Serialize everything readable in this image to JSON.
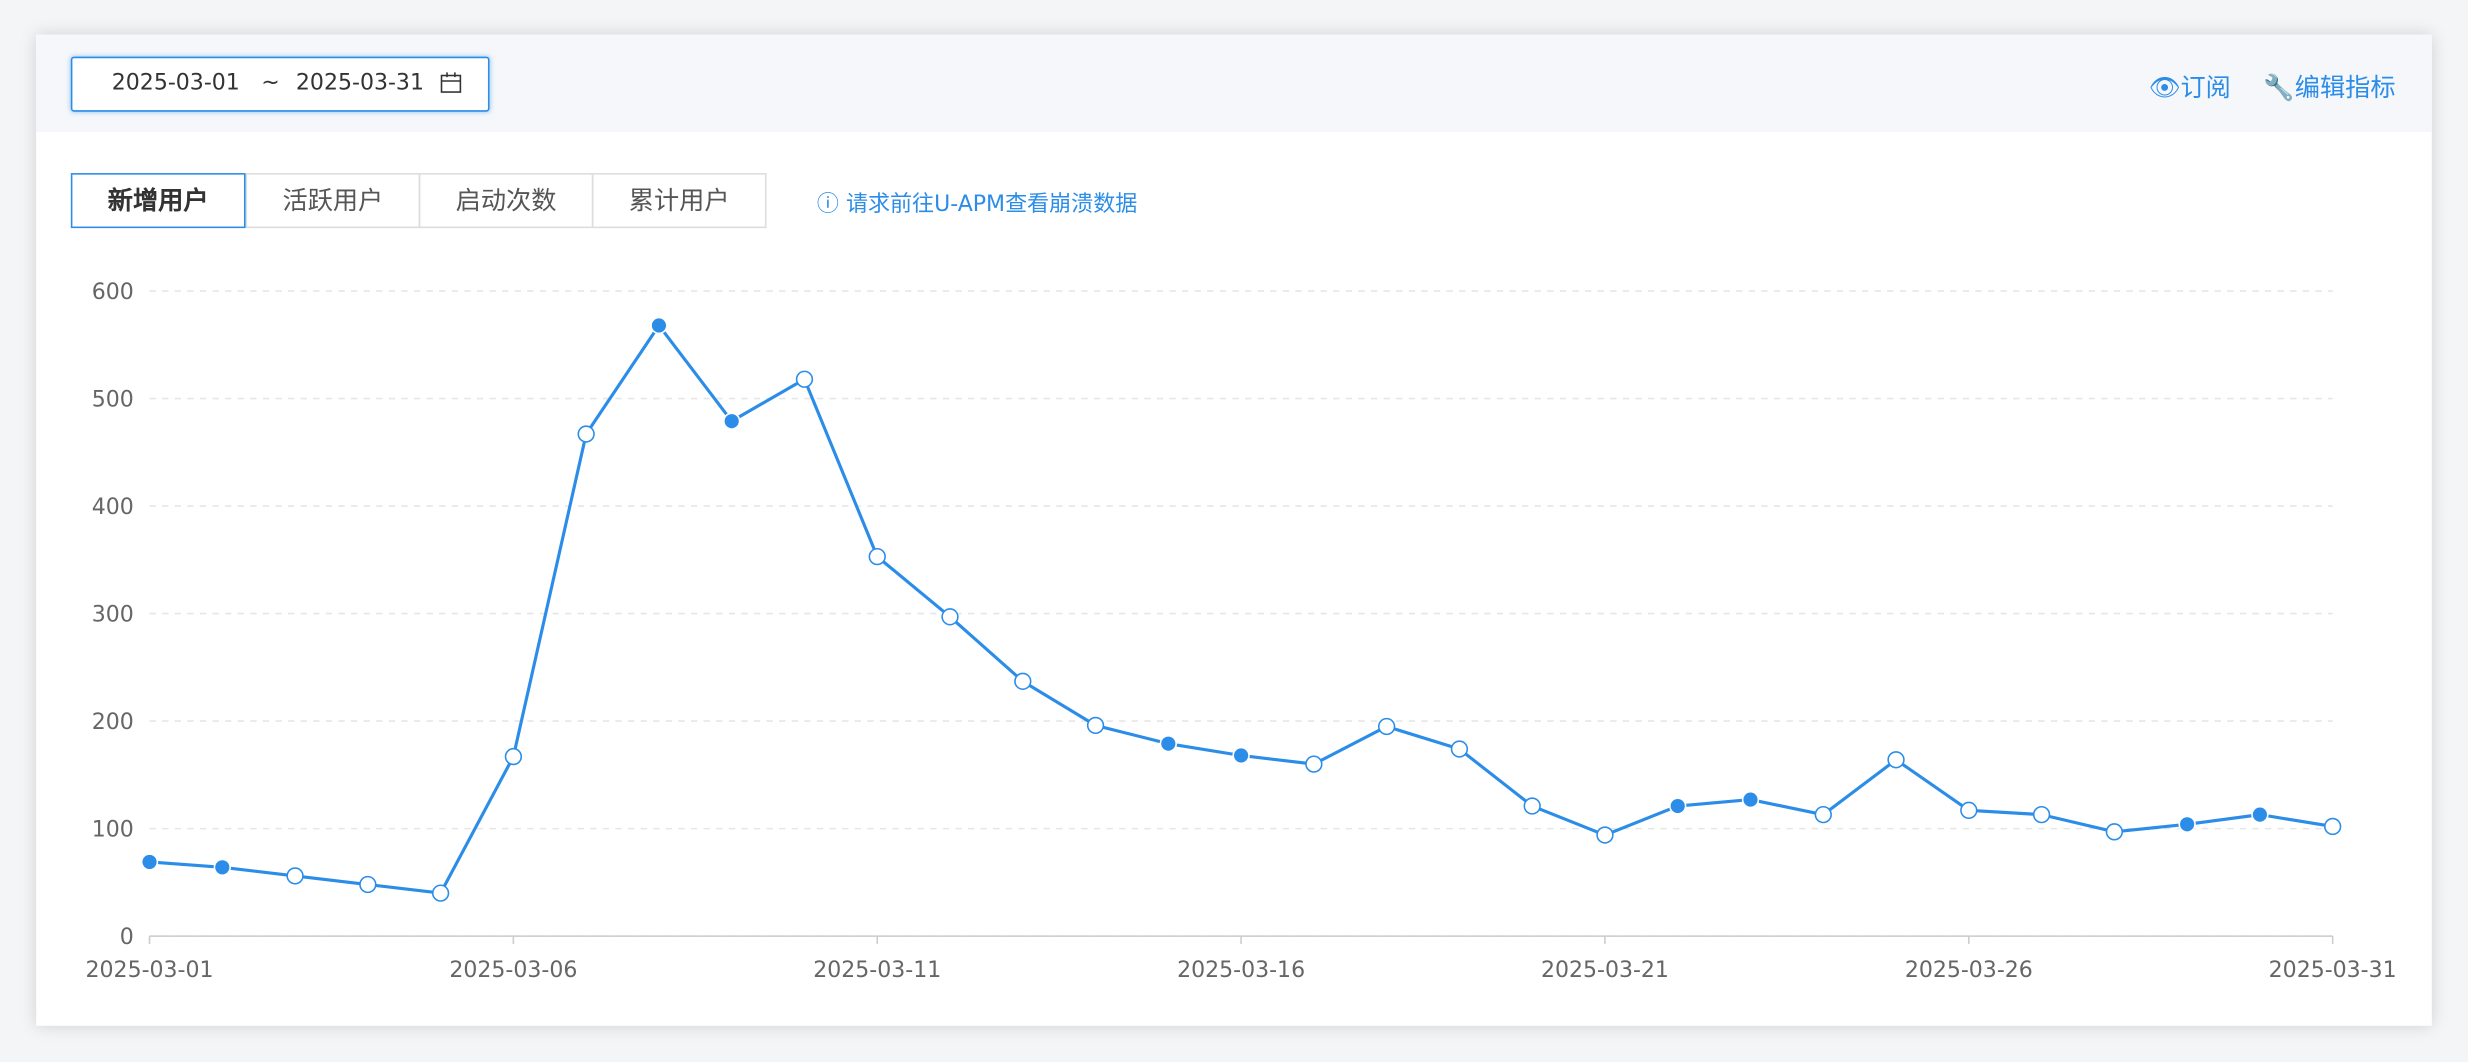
{
  "header": {
    "date_start": "2025-03-01",
    "date_separator": "~",
    "date_end": "2025-03-31",
    "links": [
      "订阅",
      "编辑指标"
    ]
  },
  "tabs": [
    "新增用户",
    "活跃用户",
    "启动次数",
    "累计用户"
  ],
  "hint": "请求前往U-APM查看崩溃数据",
  "chart_data": {
    "type": "line",
    "categories": [
      "2025-03-01",
      null,
      null,
      null,
      null,
      "2025-03-06",
      null,
      null,
      null,
      null,
      "2025-03-11",
      null,
      null,
      null,
      null,
      "2025-03-16",
      null,
      null,
      null,
      null,
      "2025-03-21",
      null,
      null,
      null,
      null,
      "2025-03-26",
      null,
      null,
      null,
      null,
      "2025-03-31"
    ],
    "series": [
      {
        "name": "新增用户",
        "color": "#2b8de8",
        "values": [
          69,
          64,
          56,
          48,
          40,
          167,
          467,
          568,
          479,
          518,
          353,
          297,
          237,
          196,
          179,
          168,
          160,
          195,
          174,
          121,
          94,
          121,
          127,
          113,
          164,
          117,
          113,
          97,
          104,
          113,
          102
        ],
        "markers": [
          "filled",
          "filled",
          "hollow",
          "hollow",
          "hollow",
          "hollow",
          "hollow",
          "filled",
          "filled",
          "hollow",
          "hollow",
          "hollow",
          "hollow",
          "hollow",
          "filled",
          "filled",
          "hollow",
          "hollow",
          "hollow",
          "hollow",
          "hollow",
          "filled",
          "filled",
          "hollow",
          "hollow",
          "hollow",
          "hollow",
          "hollow",
          "filled",
          "filled",
          "hollow"
        ]
      }
    ],
    "ylim": [
      0,
      600
    ],
    "yticks": [
      0,
      100,
      200,
      300,
      400,
      500,
      600
    ],
    "grid": true
  }
}
